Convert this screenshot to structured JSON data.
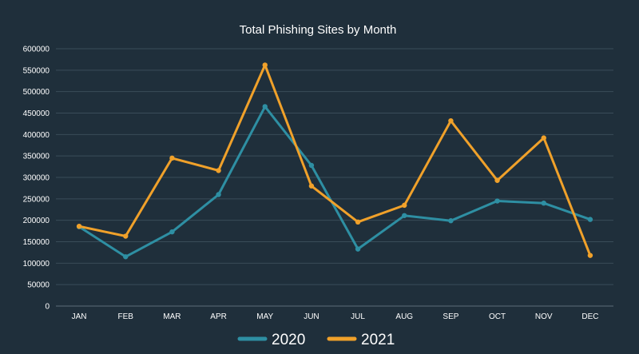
{
  "chart_data": {
    "type": "line",
    "title": "Total Phishing Sites by Month",
    "xlabel": "",
    "ylabel": "",
    "categories": [
      "JAN",
      "FEB",
      "MAR",
      "APR",
      "MAY",
      "JUN",
      "JUL",
      "AUG",
      "SEP",
      "OCT",
      "NOV",
      "DEC"
    ],
    "ylim": [
      0,
      600000
    ],
    "yticks": [
      0,
      50000,
      100000,
      150000,
      200000,
      250000,
      300000,
      350000,
      400000,
      450000,
      500000,
      550000,
      600000
    ],
    "grid": true,
    "legend_position": "bottom",
    "series": [
      {
        "name": "2020",
        "color": "#2e8fa3",
        "values": [
          185000,
          115000,
          173000,
          260000,
          465000,
          328000,
          133000,
          211000,
          199000,
          245000,
          240000,
          202000
        ]
      },
      {
        "name": "2021",
        "color": "#f0a12a",
        "values": [
          186000,
          163000,
          345000,
          316000,
          562000,
          280000,
          196000,
          235000,
          432000,
          293000,
          392000,
          118000
        ]
      }
    ]
  }
}
